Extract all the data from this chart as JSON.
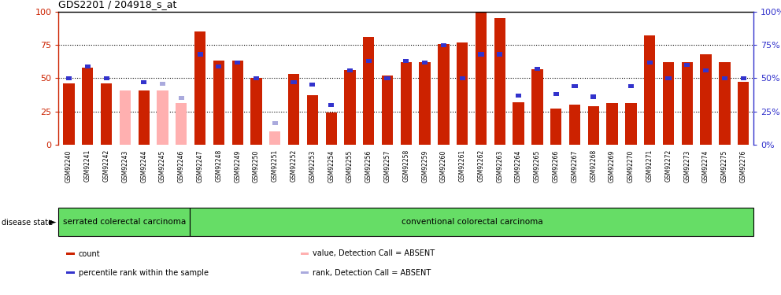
{
  "title": "GDS2201 / 204918_s_at",
  "samples": [
    "GSM92240",
    "GSM92241",
    "GSM92242",
    "GSM92243",
    "GSM92244",
    "GSM92245",
    "GSM92246",
    "GSM92247",
    "GSM92248",
    "GSM92249",
    "GSM92250",
    "GSM92251",
    "GSM92252",
    "GSM92253",
    "GSM92254",
    "GSM92255",
    "GSM92256",
    "GSM92257",
    "GSM92258",
    "GSM92259",
    "GSM92260",
    "GSM92261",
    "GSM92262",
    "GSM92263",
    "GSM92264",
    "GSM92265",
    "GSM92266",
    "GSM92267",
    "GSM92268",
    "GSM92269",
    "GSM92270",
    "GSM92271",
    "GSM92272",
    "GSM92273",
    "GSM92274",
    "GSM92275",
    "GSM92276"
  ],
  "red_values": [
    46,
    58,
    46,
    41,
    41,
    41,
    31,
    85,
    63,
    63,
    50,
    10,
    53,
    37,
    24,
    56,
    81,
    52,
    62,
    62,
    76,
    77,
    100,
    95,
    32,
    57,
    27,
    30,
    29,
    31,
    31,
    82,
    62,
    62,
    68,
    62,
    47
  ],
  "blue_values": [
    50,
    59,
    50,
    null,
    47,
    46,
    35,
    68,
    59,
    62,
    50,
    16,
    47,
    45,
    30,
    56,
    63,
    50,
    63,
    62,
    75,
    50,
    68,
    68,
    37,
    57,
    38,
    44,
    36,
    null,
    44,
    62,
    50,
    60,
    56,
    50,
    50
  ],
  "absent_flags": [
    false,
    false,
    false,
    true,
    false,
    true,
    true,
    false,
    false,
    false,
    false,
    true,
    false,
    false,
    false,
    false,
    false,
    false,
    false,
    false,
    false,
    false,
    false,
    false,
    false,
    false,
    false,
    false,
    false,
    false,
    false,
    false,
    false,
    false,
    false,
    false,
    false
  ],
  "group1_count": 7,
  "group1_label": "serrated colerectal carcinoma",
  "group2_label": "conventional colorectal carcinoma",
  "ylim": [
    0,
    100
  ],
  "yticks": [
    0,
    25,
    50,
    75,
    100
  ],
  "red_color": "#cc2200",
  "pink_color": "#ffb0b0",
  "blue_color": "#3333cc",
  "blue_absent_color": "#aaaadd",
  "xtick_bg": "#cccccc",
  "group_bg": "#66dd66",
  "hlines": [
    25,
    50,
    75
  ],
  "bar_width": 0.6
}
